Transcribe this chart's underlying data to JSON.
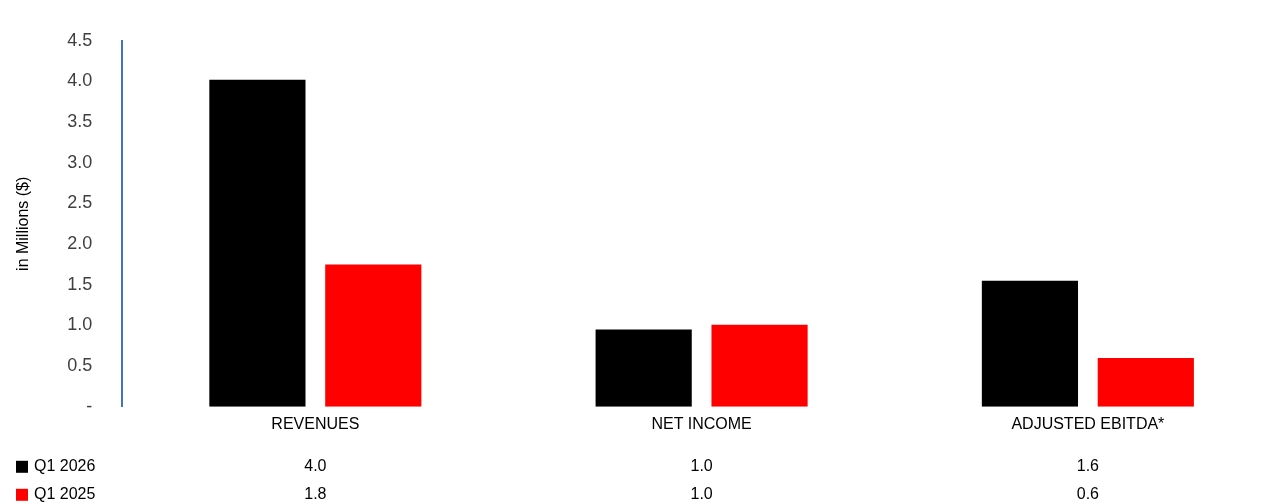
{
  "chart_data": {
    "type": "bar",
    "ylabel": "in Millions ($)",
    "categories": [
      "REVENUES",
      "NET INCOME",
      "ADJUSTED EBITDA*"
    ],
    "series": [
      {
        "name": "Q1 2026",
        "color": "#000000",
        "values": [
          4.02,
          0.95,
          1.55
        ],
        "value_labels": [
          "4.0",
          "1.0",
          "1.6"
        ]
      },
      {
        "name": "Q1 2025",
        "color": "#ff0000",
        "values": [
          1.75,
          1.01,
          0.6
        ],
        "value_labels": [
          "1.8",
          "1.0",
          "0.6"
        ]
      }
    ],
    "ylim": [
      0,
      4.5
    ],
    "yticks": [
      {
        "value": 0,
        "label": "-"
      },
      {
        "value": 0.5,
        "label": "0.5"
      },
      {
        "value": 1,
        "label": "1.0"
      },
      {
        "value": 1.5,
        "label": "1.5"
      },
      {
        "value": 2,
        "label": "2.0"
      },
      {
        "value": 2.5,
        "label": "2.5"
      },
      {
        "value": 3,
        "label": "3.0"
      },
      {
        "value": 3.5,
        "label": "3.5"
      },
      {
        "value": 4,
        "label": "4.0"
      },
      {
        "value": 4.5,
        "label": "4.5"
      }
    ],
    "grid": false,
    "legend": "bottom left"
  }
}
